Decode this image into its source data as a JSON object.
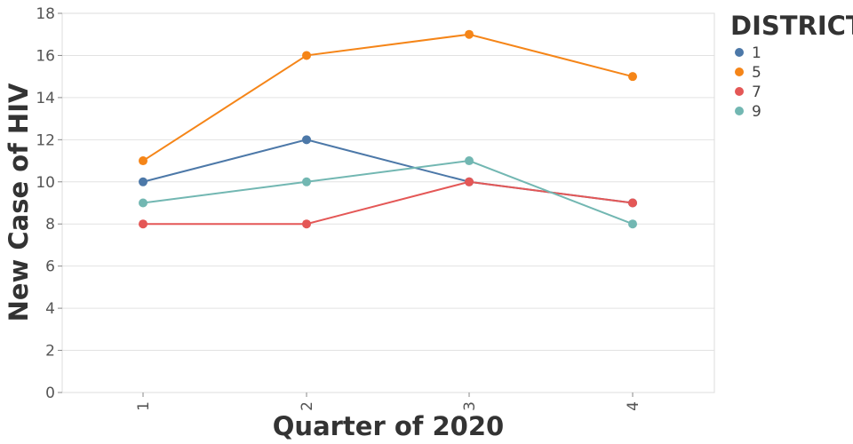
{
  "chart_data": {
    "type": "line",
    "xlabel": "Quarter of 2020",
    "ylabel": "New Case of HIV",
    "x": [
      "1",
      "2",
      "3",
      "4"
    ],
    "ylim": [
      0,
      18
    ],
    "y_ticks": [
      "0",
      "2",
      "4",
      "6",
      "8",
      "10",
      "12",
      "14",
      "16",
      "18"
    ],
    "grid": true,
    "legend": {
      "title": "DISTRICT",
      "placement": "top-right"
    },
    "series": [
      {
        "name": "1",
        "color": "#4c78a8",
        "values": [
          10,
          12,
          10,
          9
        ]
      },
      {
        "name": "5",
        "color": "#f58518",
        "values": [
          11,
          16,
          17,
          15
        ]
      },
      {
        "name": "7",
        "color": "#e45756",
        "values": [
          8,
          8,
          10,
          9
        ]
      },
      {
        "name": "9",
        "color": "#72b7b2",
        "values": [
          9,
          10,
          11,
          8
        ]
      }
    ]
  }
}
